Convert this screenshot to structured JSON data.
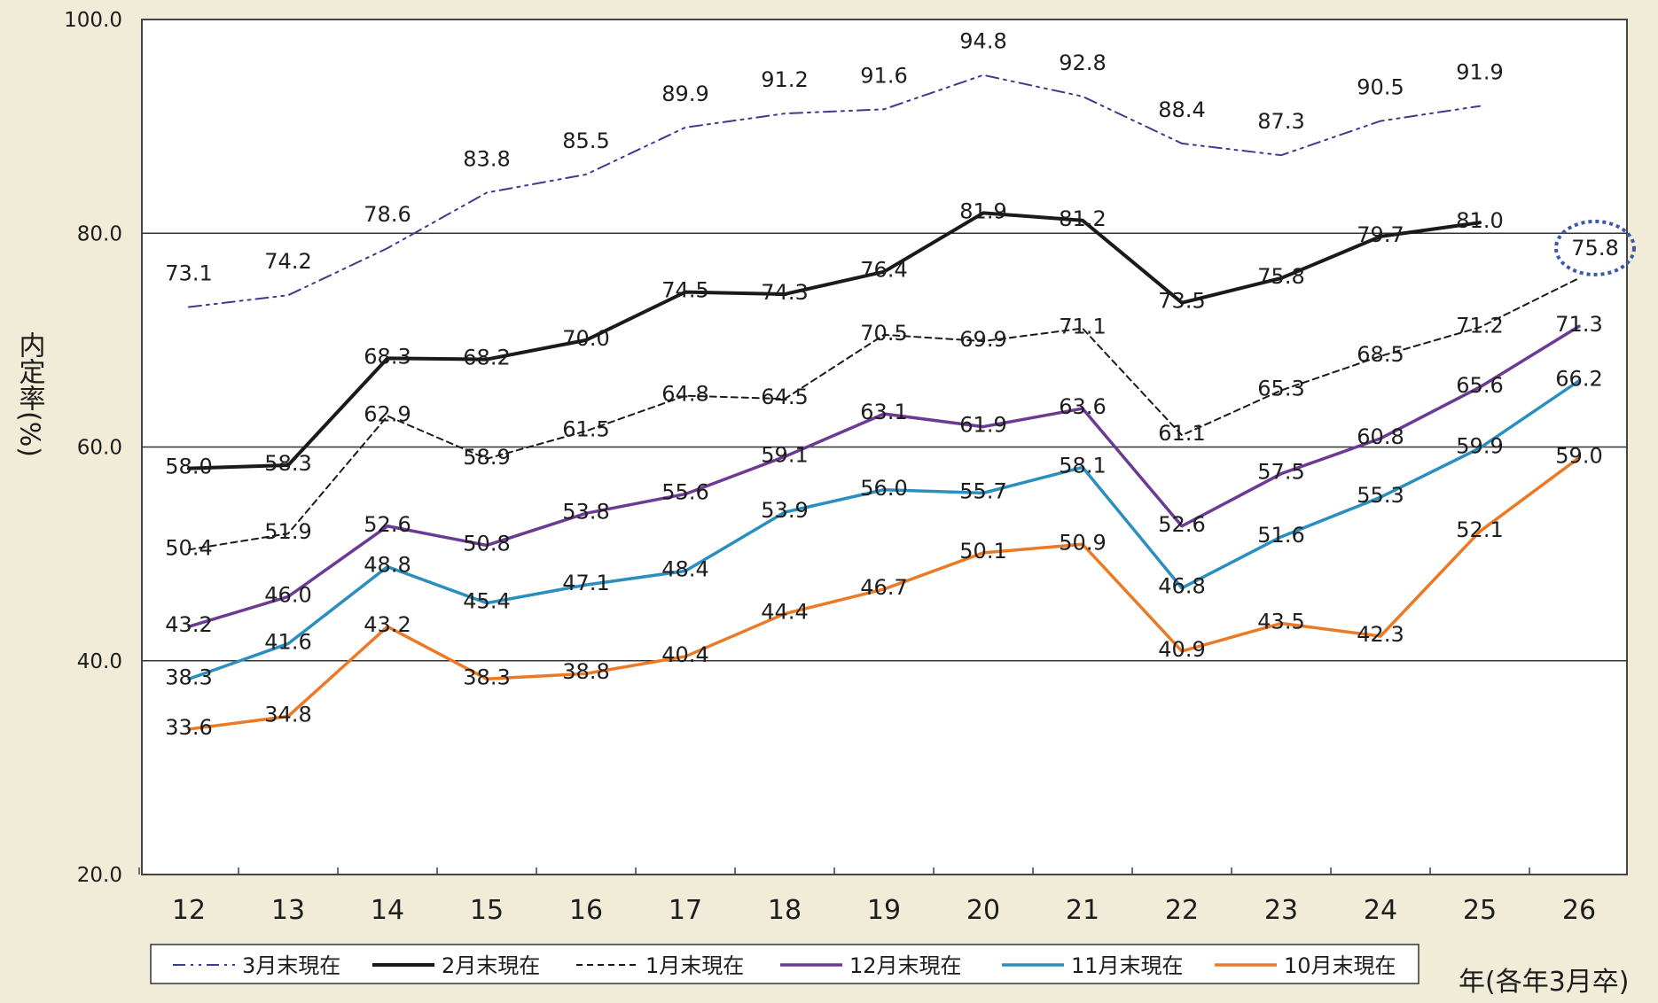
{
  "chart_data": {
    "type": "line",
    "ylabel": "内定率(%)",
    "xlabel": "年(各年3月卒)",
    "ylim": [
      20,
      100
    ],
    "yticks": [
      "20.0",
      "40.0",
      "60.0",
      "80.0",
      "100.0"
    ],
    "gridlines_at": [
      40,
      60,
      80
    ],
    "categories": [
      "12",
      "13",
      "14",
      "15",
      "16",
      "17",
      "18",
      "19",
      "20",
      "21",
      "22",
      "23",
      "24",
      "25",
      "26"
    ],
    "legend_position": "bottom",
    "highlight": {
      "series": "1月末現在",
      "category": "26",
      "value": 75.8
    },
    "series": [
      {
        "name": "3月末現在",
        "color": "#3b3b8f",
        "style": "dash-dot",
        "values": [
          73.1,
          74.2,
          78.6,
          83.8,
          85.5,
          89.9,
          91.2,
          91.6,
          94.8,
          92.8,
          88.4,
          87.3,
          90.5,
          91.9,
          null
        ]
      },
      {
        "name": "2月末現在",
        "color": "#1a1a1a",
        "style": "solid-bold",
        "values": [
          58.0,
          58.3,
          68.3,
          68.2,
          70.0,
          74.5,
          74.3,
          76.4,
          81.9,
          81.2,
          73.5,
          75.8,
          79.7,
          81.0,
          null
        ]
      },
      {
        "name": "1月末現在",
        "color": "#1a1a1a",
        "style": "dashed",
        "values": [
          50.4,
          51.9,
          62.9,
          58.9,
          61.5,
          64.8,
          64.5,
          70.5,
          69.9,
          71.1,
          61.1,
          65.3,
          68.5,
          71.2,
          75.8
        ]
      },
      {
        "name": "12月末現在",
        "color": "#6a3a94",
        "style": "solid",
        "values": [
          43.2,
          46.0,
          52.6,
          50.8,
          53.8,
          55.6,
          59.1,
          63.1,
          61.9,
          63.6,
          52.6,
          57.5,
          60.8,
          65.6,
          71.3
        ]
      },
      {
        "name": "11月末現在",
        "color": "#2a8fbf",
        "style": "solid",
        "values": [
          38.3,
          41.6,
          48.8,
          45.4,
          47.1,
          48.4,
          53.9,
          56.0,
          55.7,
          58.1,
          46.8,
          51.6,
          55.3,
          59.9,
          66.2
        ]
      },
      {
        "name": "10月末現在",
        "color": "#ec7a25",
        "style": "solid",
        "values": [
          33.6,
          34.8,
          43.2,
          38.3,
          38.8,
          40.4,
          44.4,
          46.7,
          50.1,
          50.9,
          40.9,
          43.5,
          42.3,
          52.1,
          59.0
        ]
      }
    ]
  }
}
